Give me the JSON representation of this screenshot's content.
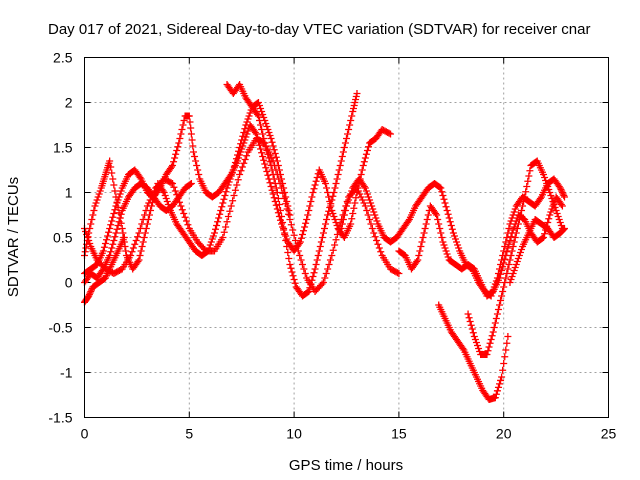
{
  "chart_data": {
    "type": "scatter",
    "title": "Day 017 of 2021, Sidereal Day-to-day VTEC variation (SDTVAR) for receiver cnar",
    "xlabel": "GPS time / hours",
    "ylabel": "SDTVAR / TECUs",
    "xlim": [
      0,
      25
    ],
    "ylim": [
      -1.5,
      2.5
    ],
    "xticks": [
      0,
      5,
      10,
      15,
      20,
      25
    ],
    "yticks": [
      -1.5,
      -1,
      -0.5,
      0,
      0.5,
      1,
      1.5,
      2,
      2.5
    ],
    "xtick_labels": [
      "0",
      "5",
      "10",
      "15",
      "20",
      "25"
    ],
    "ytick_labels": [
      "-1.5",
      "-1",
      "-0.5",
      "0",
      "0.5",
      "1",
      "1.5",
      "2",
      "2.5"
    ],
    "grid": true,
    "marker": "+",
    "color": "#ff0000",
    "series": [
      {
        "x": [
          0,
          0.2,
          0.5,
          0.8,
          1.0,
          1.2,
          1.5,
          1.8,
          2.0,
          2.3,
          2.6,
          2.9,
          3.2,
          3.5,
          3.8,
          4.1,
          4.4,
          4.7,
          5.0,
          5.3,
          5.6,
          5.9,
          6.2,
          6.5,
          6.8,
          7.1,
          7.4,
          7.7,
          8.0,
          8.3,
          8.6,
          8.9,
          9.2,
          9.5,
          9.8,
          10.1,
          10.4,
          10.7,
          11.0,
          11.3,
          11.6,
          11.9,
          12.2,
          12.5,
          12.8,
          13.0
        ],
        "y": [
          0.3,
          0.55,
          0.85,
          1.05,
          1.2,
          1.35,
          0.95,
          0.6,
          0.3,
          0.15,
          0.25,
          0.55,
          0.85,
          1.1,
          1.0,
          0.8,
          0.65,
          0.55,
          0.45,
          0.35,
          0.3,
          0.35,
          0.55,
          0.8,
          1.05,
          1.25,
          1.5,
          1.75,
          1.95,
          1.85,
          1.55,
          1.3,
          1.0,
          0.6,
          0.2,
          -0.05,
          -0.15,
          -0.1,
          0.15,
          0.45,
          0.75,
          1.0,
          1.3,
          1.6,
          1.9,
          2.1
        ]
      },
      {
        "x": [
          0,
          0.3,
          0.6,
          0.9,
          1.2,
          1.5,
          1.8,
          2.1,
          2.4,
          2.7,
          3.0,
          3.3,
          3.6,
          3.9,
          4.2,
          4.5,
          4.8,
          5.0,
          5.2,
          5.5,
          5.8,
          6.1,
          6.4,
          6.7,
          7.0,
          7.3,
          7.6,
          7.9,
          8.2,
          8.5,
          8.8,
          9.1,
          9.4,
          9.7,
          10.0,
          10.3,
          10.6,
          10.9,
          11.2,
          11.5,
          11.8,
          12.1,
          12.4,
          12.7,
          13.0,
          13.3,
          13.6,
          13.9,
          14.2,
          14.6
        ],
        "y": [
          0.1,
          0.15,
          0.2,
          0.35,
          0.6,
          0.85,
          1.05,
          1.2,
          1.25,
          1.15,
          1.0,
          0.95,
          1.05,
          1.2,
          1.3,
          1.55,
          1.85,
          1.85,
          1.45,
          1.15,
          1.0,
          0.95,
          1.0,
          1.1,
          1.2,
          1.35,
          1.55,
          1.75,
          1.65,
          1.4,
          1.15,
          0.9,
          0.65,
          0.45,
          0.35,
          0.45,
          0.7,
          1.0,
          1.25,
          1.1,
          0.8,
          0.6,
          0.5,
          0.65,
          1.0,
          1.3,
          1.55,
          1.6,
          1.7,
          1.65
        ]
      },
      {
        "x": [
          0,
          0.3,
          0.6,
          1.0,
          1.4,
          1.8,
          2.2,
          2.6,
          3.0,
          3.4,
          3.8,
          4.2,
          4.6,
          5.0,
          5.4,
          5.8,
          6.2,
          6.6,
          7.0,
          7.4,
          7.8,
          8.2,
          8.6,
          9.0,
          9.4,
          9.8,
          10.2,
          10.6,
          11.0,
          11.4,
          11.8,
          12.2,
          12.6,
          13.0,
          13.4,
          13.8,
          14.2,
          14.6,
          15.0
        ],
        "y": [
          0.6,
          0.4,
          0.25,
          0.15,
          0.1,
          0.15,
          0.3,
          0.55,
          0.85,
          1.05,
          1.15,
          1.1,
          0.85,
          0.6,
          0.45,
          0.35,
          0.35,
          0.5,
          0.85,
          1.2,
          1.45,
          1.6,
          1.55,
          1.35,
          1.05,
          0.7,
          0.35,
          0.05,
          -0.1,
          0.0,
          0.3,
          0.65,
          0.95,
          1.05,
          0.85,
          0.55,
          0.3,
          0.15,
          0.1
        ]
      },
      {
        "x": [
          0,
          0.3,
          0.6,
          0.9,
          1.2,
          1.5,
          1.8,
          2.1,
          2.4,
          2.7,
          3.0,
          3.3,
          3.6,
          3.9,
          4.2,
          4.5,
          4.8,
          5.1
        ],
        "y": [
          0.0,
          0.1,
          0.05,
          0.15,
          0.3,
          0.55,
          0.8,
          0.95,
          1.05,
          1.1,
          1.05,
          0.95,
          0.85,
          0.8,
          0.85,
          0.95,
          1.05,
          1.1
        ]
      },
      {
        "x": [
          6.8,
          7.1,
          7.4,
          7.7,
          8.0,
          8.3,
          8.6,
          8.9,
          9.2,
          9.5,
          9.8
        ],
        "y": [
          2.2,
          2.1,
          2.2,
          2.05,
          1.95,
          2.0,
          1.8,
          1.6,
          1.35,
          1.05,
          0.75
        ]
      },
      {
        "x": [
          0,
          0.2,
          0.4,
          0.7,
          1.0,
          1.3,
          1.6,
          1.9
        ],
        "y": [
          -0.22,
          -0.15,
          -0.05,
          0.0,
          0.05,
          0.2,
          0.35,
          0.5
        ]
      },
      {
        "x": [
          12.2,
          12.5,
          12.8,
          13.1,
          13.4,
          13.7,
          14.0,
          14.3,
          14.6,
          14.9,
          15.2,
          15.5,
          15.8,
          16.1,
          16.4,
          16.7,
          17.0,
          17.3,
          17.6,
          17.9,
          18.2,
          18.5,
          18.8,
          19.1,
          19.4,
          19.7,
          20.0,
          20.3,
          20.6,
          20.9,
          21.2,
          21.5,
          21.8,
          22.1,
          22.4,
          22.7,
          22.9
        ],
        "y": [
          0.55,
          0.85,
          1.05,
          1.15,
          1.05,
          0.85,
          0.65,
          0.5,
          0.45,
          0.5,
          0.6,
          0.7,
          0.85,
          0.95,
          1.05,
          1.1,
          1.05,
          0.8,
          0.55,
          0.35,
          0.2,
          0.15,
          0.0,
          -0.1,
          -0.15,
          0.05,
          0.35,
          0.65,
          0.85,
          0.95,
          0.9,
          0.85,
          0.95,
          1.1,
          1.15,
          1.05,
          0.95
        ]
      },
      {
        "x": [
          15.0,
          15.3,
          15.6,
          15.9,
          16.2,
          16.5,
          16.8,
          17.1,
          17.4,
          17.7,
          18.0,
          18.3,
          18.6,
          18.9,
          19.2,
          19.5,
          19.8,
          20.1,
          20.4,
          20.7,
          21.0,
          21.3,
          21.6,
          21.9,
          22.2,
          22.5,
          22.8
        ],
        "y": [
          0.35,
          0.3,
          0.15,
          0.25,
          0.55,
          0.85,
          0.75,
          0.45,
          0.25,
          0.2,
          0.15,
          0.2,
          0.15,
          0.0,
          -0.15,
          -0.1,
          0.05,
          0.3,
          0.55,
          0.75,
          0.7,
          0.55,
          0.45,
          0.5,
          0.75,
          0.95,
          0.85
        ]
      },
      {
        "x": [
          16.9,
          17.2,
          17.5,
          17.8,
          18.1,
          18.4,
          18.7,
          19.0,
          19.3,
          19.6,
          19.9,
          20.2
        ],
        "y": [
          -0.25,
          -0.4,
          -0.55,
          -0.65,
          -0.75,
          -0.9,
          -1.05,
          -1.2,
          -1.3,
          -1.28,
          -1.05,
          -0.6
        ]
      },
      {
        "x": [
          18.3,
          18.6,
          18.9,
          19.2,
          19.5,
          19.8,
          20.1,
          20.4,
          20.7,
          21.0,
          21.3,
          21.6,
          21.9,
          22.2,
          22.5,
          22.8
        ],
        "y": [
          -0.35,
          -0.6,
          -0.8,
          -0.8,
          -0.55,
          -0.25,
          0.05,
          0.35,
          0.65,
          0.95,
          1.3,
          1.35,
          1.2,
          1.0,
          0.8,
          0.6
        ]
      },
      {
        "x": [
          20.3,
          20.6,
          20.9,
          21.2,
          21.5,
          21.8,
          22.1,
          22.4,
          22.7,
          22.9
        ],
        "y": [
          0.0,
          0.2,
          0.4,
          0.55,
          0.7,
          0.65,
          0.6,
          0.5,
          0.55,
          0.6
        ]
      }
    ]
  }
}
